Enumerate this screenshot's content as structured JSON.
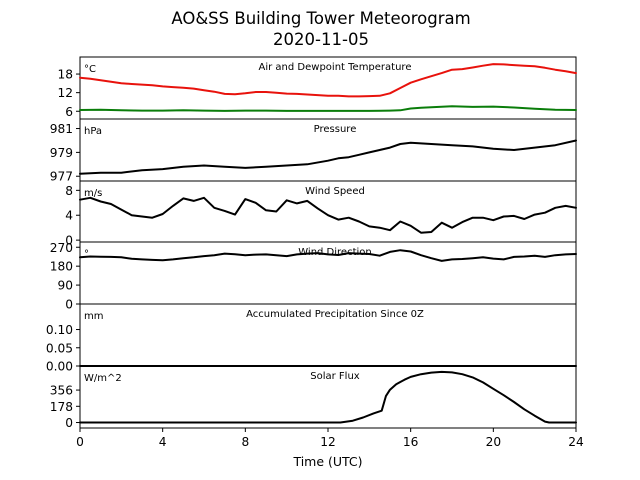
{
  "figure": {
    "title_line1": "AO&SS Building Tower Meteorogram",
    "title_line2": "2020-11-05",
    "xlabel": "Time (UTC)"
  },
  "chart_data": [
    {
      "type": "line",
      "title": "Air and Dewpoint Temperature",
      "unit_label": "°C",
      "ylim": [
        3.5,
        23.5
      ],
      "yticks": [
        6,
        12,
        18
      ],
      "xlim": [
        0,
        24
      ],
      "series": [
        {
          "color": "#e8120c",
          "x": [
            0,
            0.5,
            1,
            1.5,
            2,
            2.5,
            3,
            3.5,
            4,
            4.5,
            5,
            5.5,
            6,
            6.5,
            7,
            7.5,
            8,
            8.5,
            9,
            9.5,
            10,
            10.5,
            11,
            11.5,
            12,
            12.5,
            13,
            13.5,
            14,
            14.5,
            15,
            15.5,
            16,
            16.5,
            17,
            17.5,
            18,
            18.5,
            19,
            19.5,
            20,
            20.5,
            21,
            21.5,
            22,
            22.5,
            23,
            23.5,
            24
          ],
          "y": [
            16.8,
            16.5,
            16.0,
            15.5,
            15.0,
            14.8,
            14.6,
            14.4,
            14.0,
            13.8,
            13.6,
            13.3,
            12.8,
            12.3,
            11.6,
            11.5,
            11.8,
            12.2,
            12.2,
            12.0,
            11.7,
            11.6,
            11.4,
            11.2,
            11.0,
            11.0,
            10.8,
            10.8,
            10.9,
            11.0,
            11.8,
            13.5,
            15.2,
            16.3,
            17.3,
            18.3,
            19.4,
            19.6,
            20.1,
            20.7,
            21.2,
            21.1,
            20.9,
            20.7,
            20.5,
            20.0,
            19.4,
            18.9,
            18.3
          ]
        },
        {
          "color": "#0a7d0a",
          "x": [
            0,
            1,
            2,
            3,
            4,
            5,
            6,
            7,
            8,
            9,
            10,
            11,
            12,
            13,
            14,
            15,
            15.5,
            16,
            16.5,
            17,
            18,
            19,
            20,
            21,
            22,
            23,
            24
          ],
          "y": [
            6.4,
            6.5,
            6.3,
            6.2,
            6.2,
            6.3,
            6.2,
            6.1,
            6.2,
            6.2,
            6.1,
            6.1,
            6.1,
            6.1,
            6.1,
            6.2,
            6.3,
            6.9,
            7.1,
            7.3,
            7.6,
            7.4,
            7.5,
            7.2,
            6.8,
            6.5,
            6.4
          ]
        }
      ]
    },
    {
      "type": "line",
      "title": "Pressure",
      "unit_label": "hPa",
      "ylim": [
        976.6,
        981.8
      ],
      "yticks": [
        977,
        979,
        981
      ],
      "xlim": [
        0,
        24
      ],
      "series": [
        {
          "color": "#000000",
          "x": [
            0,
            1,
            2,
            3,
            4,
            5,
            6,
            7,
            8,
            9,
            10,
            11,
            12,
            12.5,
            13,
            13.5,
            14,
            14.5,
            15,
            15.5,
            16,
            17,
            18,
            19,
            20,
            21,
            22,
            23,
            24
          ],
          "y": [
            977.2,
            977.3,
            977.3,
            977.5,
            977.6,
            977.8,
            977.9,
            977.8,
            977.7,
            977.8,
            977.9,
            978.0,
            978.3,
            978.5,
            978.6,
            978.8,
            979.0,
            979.2,
            979.4,
            979.7,
            979.8,
            979.7,
            979.6,
            979.5,
            979.3,
            979.2,
            979.4,
            979.6,
            980.0
          ]
        }
      ]
    },
    {
      "type": "line",
      "title": "Wind Speed",
      "unit_label": "m/s",
      "ylim": [
        -0.3,
        9.5
      ],
      "yticks": [
        0,
        4,
        8
      ],
      "xlim": [
        0,
        24
      ],
      "series": [
        {
          "color": "#000000",
          "x": [
            0,
            0.5,
            1,
            1.5,
            2,
            2.5,
            3,
            3.5,
            4,
            4.5,
            5,
            5.5,
            6,
            6.5,
            7,
            7.5,
            8,
            8.5,
            9,
            9.5,
            10,
            10.5,
            11,
            11.5,
            12,
            12.5,
            13,
            13.5,
            14,
            14.5,
            15,
            15.5,
            16,
            16.5,
            17,
            17.5,
            18,
            18.5,
            19,
            19.5,
            20,
            20.5,
            21,
            21.5,
            22,
            22.5,
            23,
            23.5,
            24
          ],
          "y": [
            6.5,
            6.8,
            6.2,
            5.8,
            4.9,
            4.0,
            3.8,
            3.6,
            4.2,
            5.5,
            6.7,
            6.3,
            6.8,
            5.2,
            4.7,
            4.1,
            6.6,
            6.0,
            4.8,
            4.6,
            6.4,
            5.9,
            6.3,
            5.1,
            4.0,
            3.3,
            3.6,
            3.0,
            2.2,
            2.0,
            1.6,
            3.0,
            2.3,
            1.2,
            1.3,
            2.8,
            2.0,
            2.9,
            3.6,
            3.6,
            3.2,
            3.8,
            3.9,
            3.4,
            4.1,
            4.4,
            5.2,
            5.5,
            5.2
          ]
        }
      ]
    },
    {
      "type": "line",
      "title": "Wind Direction",
      "unit_label": "°",
      "ylim": [
        0,
        295
      ],
      "yticks": [
        0,
        90,
        180,
        270
      ],
      "xlim": [
        0,
        24
      ],
      "series": [
        {
          "color": "#000000",
          "x": [
            0,
            0.5,
            1,
            1.5,
            2,
            2.5,
            3,
            3.5,
            4,
            4.5,
            5,
            5.5,
            6,
            6.5,
            7,
            7.5,
            8,
            8.5,
            9,
            9.5,
            10,
            10.5,
            11,
            11.5,
            12,
            12.5,
            13,
            13.5,
            14,
            14.5,
            15,
            15.5,
            16,
            16.5,
            17,
            17.5,
            18,
            18.5,
            19,
            19.5,
            20,
            20.5,
            21,
            21.5,
            22,
            22.5,
            23,
            23.5,
            24
          ],
          "y": [
            222,
            226,
            225,
            224,
            222,
            215,
            212,
            210,
            208,
            212,
            218,
            222,
            228,
            232,
            240,
            237,
            232,
            235,
            236,
            232,
            228,
            236,
            240,
            242,
            236,
            233,
            242,
            240,
            238,
            230,
            248,
            256,
            250,
            232,
            218,
            205,
            212,
            214,
            218,
            222,
            216,
            212,
            224,
            226,
            230,
            224,
            232,
            236,
            238
          ]
        }
      ]
    },
    {
      "type": "line",
      "title": "Accumulated Precipitation Since 0Z",
      "unit_label": "mm",
      "ylim": [
        0,
        0.17
      ],
      "yticks": [
        0.0,
        0.05,
        0.1
      ],
      "ytick_labels": [
        "0.00",
        "0.05",
        "0.10"
      ],
      "xlim": [
        0,
        24
      ],
      "series": [
        {
          "color": "#000000",
          "x": [
            0,
            24
          ],
          "y": [
            0.0,
            0.0
          ]
        }
      ]
    },
    {
      "type": "line",
      "title": "Solar Flux",
      "unit_label": "W/m^2",
      "ylim": [
        -60,
        620
      ],
      "yticks": [
        0,
        178,
        356
      ],
      "xlim": [
        0,
        24
      ],
      "series": [
        {
          "color": "#000000",
          "x": [
            0,
            12.6,
            13.2,
            13.7,
            14.2,
            14.6,
            14.8,
            15.0,
            15.3,
            15.7,
            16.0,
            16.5,
            17.0,
            17.5,
            18.0,
            18.5,
            19.0,
            19.5,
            20.0,
            20.5,
            21.0,
            21.5,
            22.0,
            22.5,
            22.7,
            24
          ],
          "y": [
            0,
            0,
            20,
            55,
            100,
            130,
            290,
            360,
            420,
            470,
            500,
            530,
            548,
            555,
            550,
            530,
            495,
            440,
            370,
            300,
            225,
            145,
            75,
            10,
            0,
            0
          ]
        }
      ]
    }
  ]
}
